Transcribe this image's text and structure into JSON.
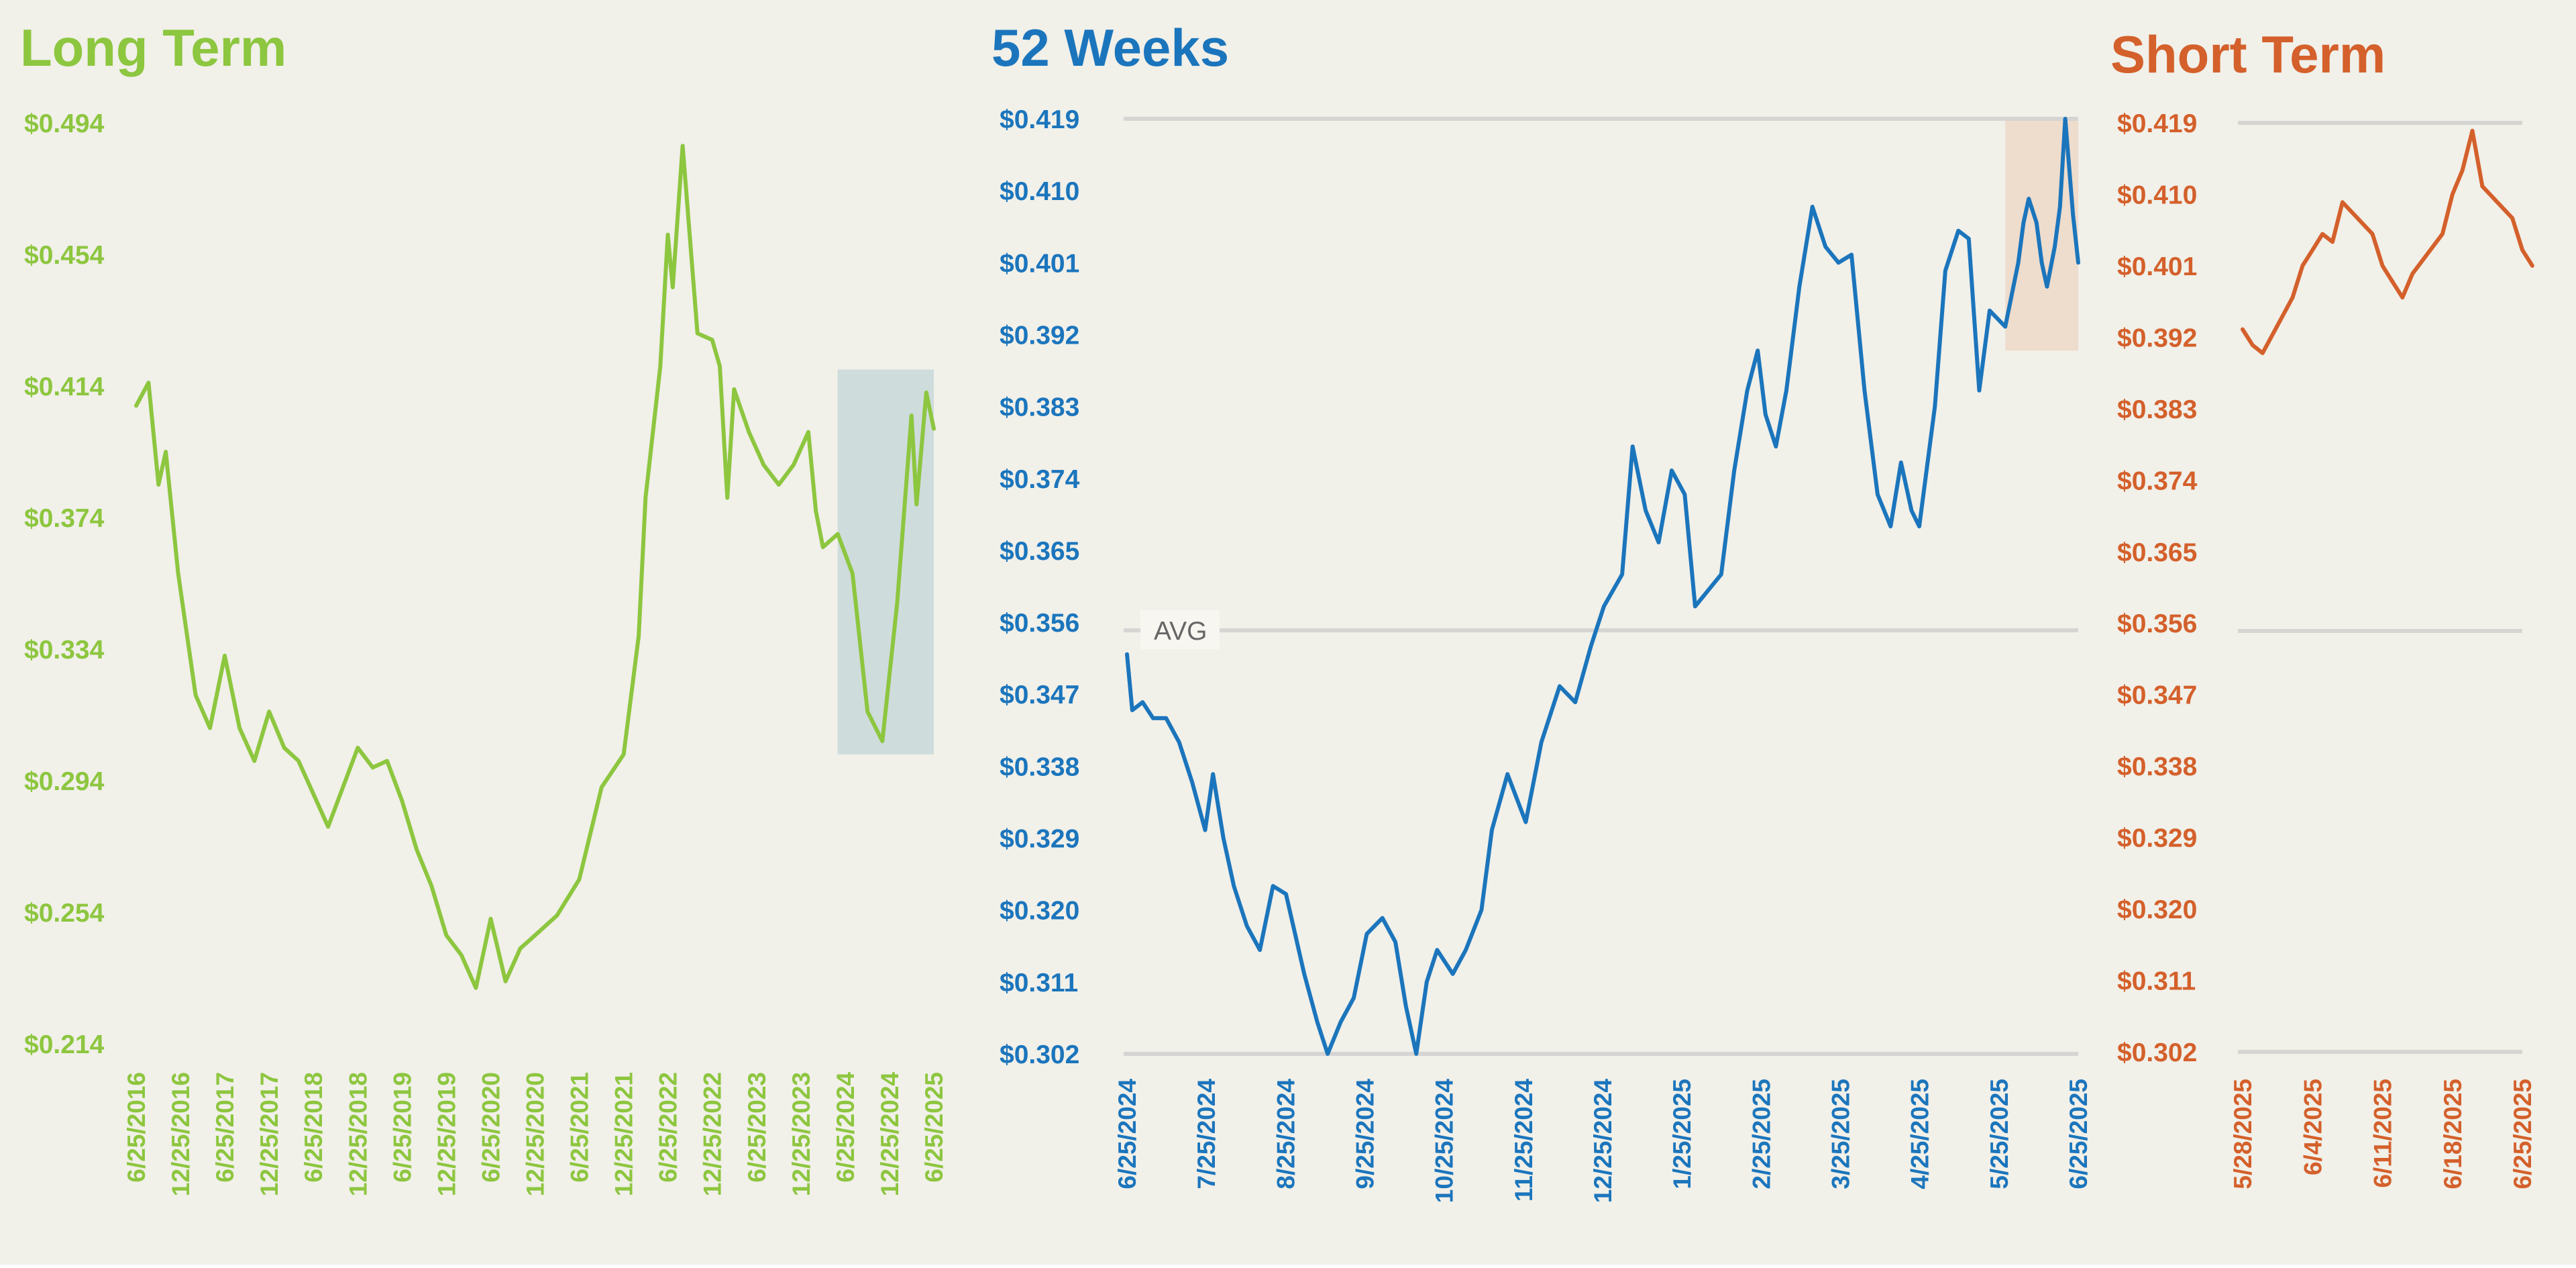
{
  "colors": {
    "background": "#f1f0e9",
    "long": "#8dc63f",
    "weeks52": "#1b75bc",
    "short": "#d4602b",
    "gridline": "#d5d5d3",
    "long_highlight": "#cfdcdc",
    "weeks52_highlight": "#eedccd"
  },
  "chart_data": [
    {
      "type": "line",
      "title": "Long Term",
      "y_ticks": [
        "$0.494",
        "$0.454",
        "$0.414",
        "$0.374",
        "$0.334",
        "$0.294",
        "$0.254",
        "$0.214"
      ],
      "ylim": [
        0.214,
        0.494
      ],
      "x_ticks": [
        "6/25/2016",
        "12/25/2016",
        "6/25/2017",
        "12/25/2017",
        "6/25/2018",
        "12/25/2018",
        "6/25/2019",
        "12/25/2019",
        "6/25/2020",
        "12/25/2020",
        "6/25/2021",
        "12/25/2021",
        "6/25/2022",
        "12/25/2022",
        "6/25/2023",
        "12/25/2023",
        "6/25/2024",
        "12/25/2024",
        "6/25/2025"
      ],
      "xlim": [
        "2016-06-25",
        "2025-06-25"
      ],
      "highlight": {
        "x": [
          "2024-05-25",
          "2025-06-25"
        ],
        "y": [
          0.302,
          0.419
        ]
      },
      "series": [
        {
          "values": [
            [
              "2016-06-25",
              0.408
            ],
            [
              "2016-08-15",
              0.415
            ],
            [
              "2016-09-25",
              0.384
            ],
            [
              "2016-10-25",
              0.394
            ],
            [
              "2016-12-15",
              0.357
            ],
            [
              "2017-02-25",
              0.32
            ],
            [
              "2017-04-25",
              0.31
            ],
            [
              "2017-06-25",
              0.332
            ],
            [
              "2017-08-25",
              0.31
            ],
            [
              "2017-10-25",
              0.3
            ],
            [
              "2017-12-25",
              0.315
            ],
            [
              "2018-02-25",
              0.304
            ],
            [
              "2018-04-25",
              0.3
            ],
            [
              "2018-06-25",
              0.29
            ],
            [
              "2018-08-25",
              0.28
            ],
            [
              "2018-10-25",
              0.292
            ],
            [
              "2018-12-25",
              0.304
            ],
            [
              "2019-02-25",
              0.298
            ],
            [
              "2019-04-25",
              0.3
            ],
            [
              "2019-06-25",
              0.288
            ],
            [
              "2019-08-25",
              0.273
            ],
            [
              "2019-10-25",
              0.262
            ],
            [
              "2019-12-25",
              0.247
            ],
            [
              "2020-02-25",
              0.241
            ],
            [
              "2020-04-25",
              0.231
            ],
            [
              "2020-06-25",
              0.252
            ],
            [
              "2020-08-25",
              0.233
            ],
            [
              "2020-10-25",
              0.243
            ],
            [
              "2020-12-25",
              0.247
            ],
            [
              "2021-03-25",
              0.253
            ],
            [
              "2021-06-25",
              0.264
            ],
            [
              "2021-09-25",
              0.292
            ],
            [
              "2021-12-25",
              0.302
            ],
            [
              "2022-02-25",
              0.338
            ],
            [
              "2022-03-25",
              0.38
            ],
            [
              "2022-05-25",
              0.42
            ],
            [
              "2022-06-25",
              0.46
            ],
            [
              "2022-07-15",
              0.444
            ],
            [
              "2022-08-25",
              0.487
            ],
            [
              "2022-10-25",
              0.43
            ],
            [
              "2022-12-25",
              0.428
            ],
            [
              "2023-01-25",
              0.42
            ],
            [
              "2023-02-25",
              0.38
            ],
            [
              "2023-03-25",
              0.413
            ],
            [
              "2023-05-25",
              0.4
            ],
            [
              "2023-07-25",
              0.39
            ],
            [
              "2023-09-25",
              0.384
            ],
            [
              "2023-11-25",
              0.39
            ],
            [
              "2024-01-25",
              0.4
            ],
            [
              "2024-02-25",
              0.376
            ],
            [
              "2024-03-25",
              0.365
            ],
            [
              "2024-05-25",
              0.369
            ],
            [
              "2024-07-25",
              0.357
            ],
            [
              "2024-09-25",
              0.315
            ],
            [
              "2024-11-25",
              0.306
            ],
            [
              "2025-01-25",
              0.348
            ],
            [
              "2025-03-25",
              0.405
            ],
            [
              "2025-04-15",
              0.378
            ],
            [
              "2025-05-25",
              0.412
            ],
            [
              "2025-06-25",
              0.401
            ]
          ]
        }
      ]
    },
    {
      "type": "line",
      "title": "52 Weeks",
      "y_ticks": [
        "$0.419",
        "$0.410",
        "$0.401",
        "$0.392",
        "$0.383",
        "$0.374",
        "$0.365",
        "$0.356",
        "$0.347",
        "$0.338",
        "$0.329",
        "$0.320",
        "$0.311",
        "$0.302"
      ],
      "ylim": [
        0.302,
        0.419
      ],
      "x_ticks": [
        "6/25/2024",
        "7/25/2024",
        "8/25/2024",
        "9/25/2024",
        "10/25/2024",
        "11/25/2024",
        "12/25/2024",
        "1/25/2025",
        "2/25/2025",
        "3/25/2025",
        "4/25/2025",
        "5/25/2025",
        "6/25/2025"
      ],
      "xlim": [
        "2024-06-25",
        "2025-06-25"
      ],
      "average": 0.355,
      "average_label": "AVG",
      "highlight": {
        "x": [
          "2025-05-28",
          "2025-06-25"
        ],
        "y": [
          0.39,
          0.419
        ]
      },
      "series": [
        {
          "values": [
            [
              "2024-06-25",
              0.352
            ],
            [
              "2024-06-27",
              0.345
            ],
            [
              "2024-07-01",
              0.346
            ],
            [
              "2024-07-05",
              0.344
            ],
            [
              "2024-07-10",
              0.344
            ],
            [
              "2024-07-15",
              0.341
            ],
            [
              "2024-07-20",
              0.336
            ],
            [
              "2024-07-25",
              0.33
            ],
            [
              "2024-07-28",
              0.337
            ],
            [
              "2024-08-01",
              0.329
            ],
            [
              "2024-08-05",
              0.323
            ],
            [
              "2024-08-10",
              0.318
            ],
            [
              "2024-08-15",
              0.315
            ],
            [
              "2024-08-20",
              0.323
            ],
            [
              "2024-08-25",
              0.322
            ],
            [
              "2024-09-01",
              0.312
            ],
            [
              "2024-09-06",
              0.306
            ],
            [
              "2024-09-10",
              0.302
            ],
            [
              "2024-09-15",
              0.306
            ],
            [
              "2024-09-20",
              0.309
            ],
            [
              "2024-09-25",
              0.317
            ],
            [
              "2024-10-01",
              0.319
            ],
            [
              "2024-10-06",
              0.316
            ],
            [
              "2024-10-10",
              0.308
            ],
            [
              "2024-10-14",
              0.302
            ],
            [
              "2024-10-18",
              0.311
            ],
            [
              "2024-10-22",
              0.315
            ],
            [
              "2024-10-28",
              0.312
            ],
            [
              "2024-11-02",
              0.315
            ],
            [
              "2024-11-08",
              0.32
            ],
            [
              "2024-11-12",
              0.33
            ],
            [
              "2024-11-18",
              0.337
            ],
            [
              "2024-11-25",
              0.331
            ],
            [
              "2024-12-01",
              0.341
            ],
            [
              "2024-12-08",
              0.348
            ],
            [
              "2024-12-14",
              0.346
            ],
            [
              "2024-12-20",
              0.353
            ],
            [
              "2024-12-25",
              0.358
            ],
            [
              "2025-01-01",
              0.362
            ],
            [
              "2025-01-05",
              0.378
            ],
            [
              "2025-01-10",
              0.37
            ],
            [
              "2025-01-15",
              0.366
            ],
            [
              "2025-01-20",
              0.375
            ],
            [
              "2025-01-25",
              0.372
            ],
            [
              "2025-01-29",
              0.358
            ],
            [
              "2025-02-03",
              0.36
            ],
            [
              "2025-02-08",
              0.362
            ],
            [
              "2025-02-13",
              0.375
            ],
            [
              "2025-02-18",
              0.385
            ],
            [
              "2025-02-22",
              0.39
            ],
            [
              "2025-02-25",
              0.382
            ],
            [
              "2025-03-01",
              0.378
            ],
            [
              "2025-03-05",
              0.385
            ],
            [
              "2025-03-10",
              0.398
            ],
            [
              "2025-03-15",
              0.408
            ],
            [
              "2025-03-20",
              0.403
            ],
            [
              "2025-03-25",
              0.401
            ],
            [
              "2025-03-30",
              0.402
            ],
            [
              "2025-04-04",
              0.385
            ],
            [
              "2025-04-09",
              0.372
            ],
            [
              "2025-04-14",
              0.368
            ],
            [
              "2025-04-18",
              0.376
            ],
            [
              "2025-04-22",
              0.37
            ],
            [
              "2025-04-25",
              0.368
            ],
            [
              "2025-05-01",
              0.383
            ],
            [
              "2025-05-05",
              0.4
            ],
            [
              "2025-05-10",
              0.405
            ],
            [
              "2025-05-14",
              0.404
            ],
            [
              "2025-05-18",
              0.385
            ],
            [
              "2025-05-22",
              0.395
            ],
            [
              "2025-05-28",
              0.393
            ],
            [
              "2025-06-02",
              0.401
            ],
            [
              "2025-06-04",
              0.406
            ],
            [
              "2025-06-06",
              0.409
            ],
            [
              "2025-06-09",
              0.406
            ],
            [
              "2025-06-11",
              0.401
            ],
            [
              "2025-06-13",
              0.398
            ],
            [
              "2025-06-16",
              0.403
            ],
            [
              "2025-06-18",
              0.408
            ],
            [
              "2025-06-20",
              0.419
            ],
            [
              "2025-06-23",
              0.407
            ],
            [
              "2025-06-24",
              0.404
            ],
            [
              "2025-06-25",
              0.401
            ]
          ]
        }
      ]
    },
    {
      "type": "line",
      "title": "Short Term",
      "y_ticks": [
        "$0.419",
        "$0.410",
        "$0.401",
        "$0.392",
        "$0.383",
        "$0.374",
        "$0.365",
        "$0.356",
        "$0.347",
        "$0.338",
        "$0.329",
        "$0.320",
        "$0.311",
        "$0.302"
      ],
      "ylim": [
        0.302,
        0.419
      ],
      "x_ticks": [
        "5/28/2025",
        "6/4/2025",
        "6/11/2025",
        "6/18/2025",
        "6/25/2025"
      ],
      "xlim": [
        "2025-05-28",
        "2025-06-25"
      ],
      "average": 0.355,
      "series": [
        {
          "values": [
            [
              "2025-05-28",
              0.393
            ],
            [
              "2025-05-29",
              0.391
            ],
            [
              "2025-05-30",
              0.39
            ],
            [
              "2025-06-02",
              0.397
            ],
            [
              "2025-06-03",
              0.401
            ],
            [
              "2025-06-04",
              0.403
            ],
            [
              "2025-06-05",
              0.405
            ],
            [
              "2025-06-06",
              0.404
            ],
            [
              "2025-06-07",
              0.409
            ],
            [
              "2025-06-10",
              0.405
            ],
            [
              "2025-06-11",
              0.401
            ],
            [
              "2025-06-12",
              0.399
            ],
            [
              "2025-06-13",
              0.397
            ],
            [
              "2025-06-14",
              0.4
            ],
            [
              "2025-06-17",
              0.405
            ],
            [
              "2025-06-18",
              0.41
            ],
            [
              "2025-06-19",
              0.413
            ],
            [
              "2025-06-20",
              0.418
            ],
            [
              "2025-06-21",
              0.411
            ],
            [
              "2025-06-24",
              0.407
            ],
            [
              "2025-06-25",
              0.403
            ],
            [
              "2025-06-26",
              0.401
            ]
          ]
        }
      ]
    }
  ]
}
